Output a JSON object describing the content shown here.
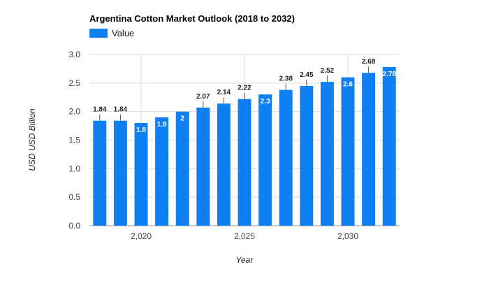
{
  "chart_data": {
    "type": "bar",
    "title": "Argentina Cotton Market Outlook (2018 to 2032)",
    "legend": {
      "entries": [
        "Value"
      ],
      "position": "top-left"
    },
    "series": [
      {
        "name": "Value",
        "color": "#0f7ff2",
        "x": [
          2018,
          2019,
          2020,
          2021,
          2022,
          2023,
          2024,
          2025,
          2026,
          2027,
          2028,
          2029,
          2030,
          2031,
          2032
        ],
        "values": [
          1.84,
          1.84,
          1.8,
          1.9,
          2.0,
          2.07,
          2.14,
          2.22,
          2.3,
          2.38,
          2.45,
          2.52,
          2.6,
          2.68,
          2.78
        ],
        "data_labels": [
          "1.84",
          "1.84",
          "1.8",
          "1.9",
          "2",
          "2.07",
          "2.14",
          "2.22",
          "2.3",
          "2.38",
          "2.45",
          "2.52",
          "2.6",
          "2.68",
          "2.78"
        ],
        "label_inside": [
          false,
          false,
          true,
          true,
          true,
          false,
          false,
          false,
          true,
          false,
          false,
          false,
          true,
          false,
          true
        ]
      }
    ],
    "xlabel": "Year",
    "ylabel": "USD USD Billion",
    "ylim": [
      0,
      3.0
    ],
    "xlim": [
      2017.5,
      2032.5
    ],
    "y_ticks": [
      0.0,
      0.5,
      1.0,
      1.5,
      2.0,
      2.5,
      3.0
    ],
    "y_tick_labels": [
      "0.0",
      "0.5",
      "1.0",
      "1.5",
      "2.0",
      "2.5",
      "3.0"
    ],
    "x_ticks": [
      2020,
      2025,
      2030
    ],
    "x_tick_labels": [
      "2,020",
      "2,025",
      "2,030"
    ],
    "grid": true
  }
}
